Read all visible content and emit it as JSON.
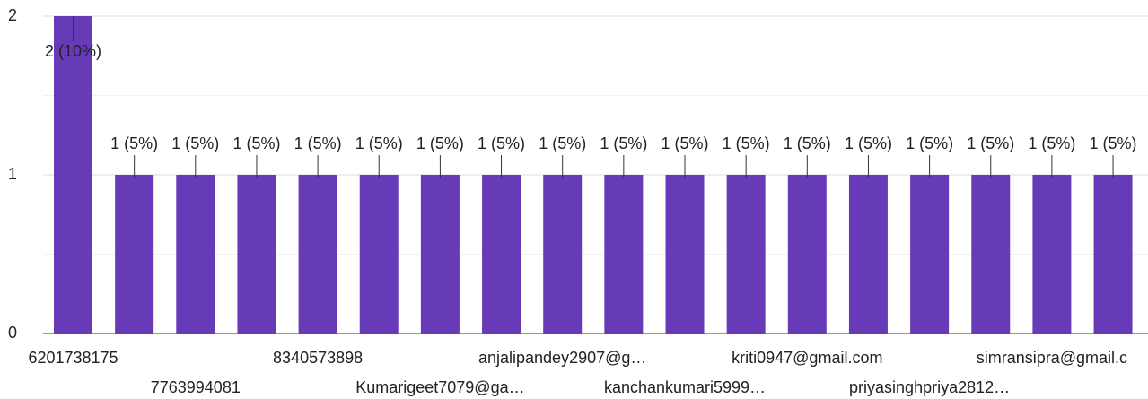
{
  "chart_data": {
    "type": "bar",
    "categories": [
      "6201738175",
      null,
      "7763994081",
      null,
      "8340573898",
      null,
      "Kumarigeet7079@ga…",
      null,
      "anjalipandey2907@g…",
      null,
      "kanchankumari5999…",
      null,
      "kriti0947@gmail.com",
      null,
      "priyasinghpriya2812…",
      null,
      "simransipra@gmail.c",
      null
    ],
    "values": [
      2,
      1,
      1,
      1,
      1,
      1,
      1,
      1,
      1,
      1,
      1,
      1,
      1,
      1,
      1,
      1,
      1,
      1
    ],
    "value_labels": [
      "2 (10%)",
      "1 (5%)",
      "1 (5%)",
      "1 (5%)",
      "1 (5%)",
      "1 (5%)",
      "1 (5%)",
      "1 (5%)",
      "1 (5%)",
      "1 (5%)",
      "1 (5%)",
      "1 (5%)",
      "1 (5%)",
      "1 (5%)",
      "1 (5%)",
      "1 (5%)",
      "1 (5%)",
      "1 (5%)"
    ],
    "color": "#673ab7",
    "ylim": [
      0,
      2
    ],
    "yticks": [
      0,
      1,
      2
    ],
    "minor_yticks": [
      0.5,
      1.5
    ],
    "grid": true
  }
}
